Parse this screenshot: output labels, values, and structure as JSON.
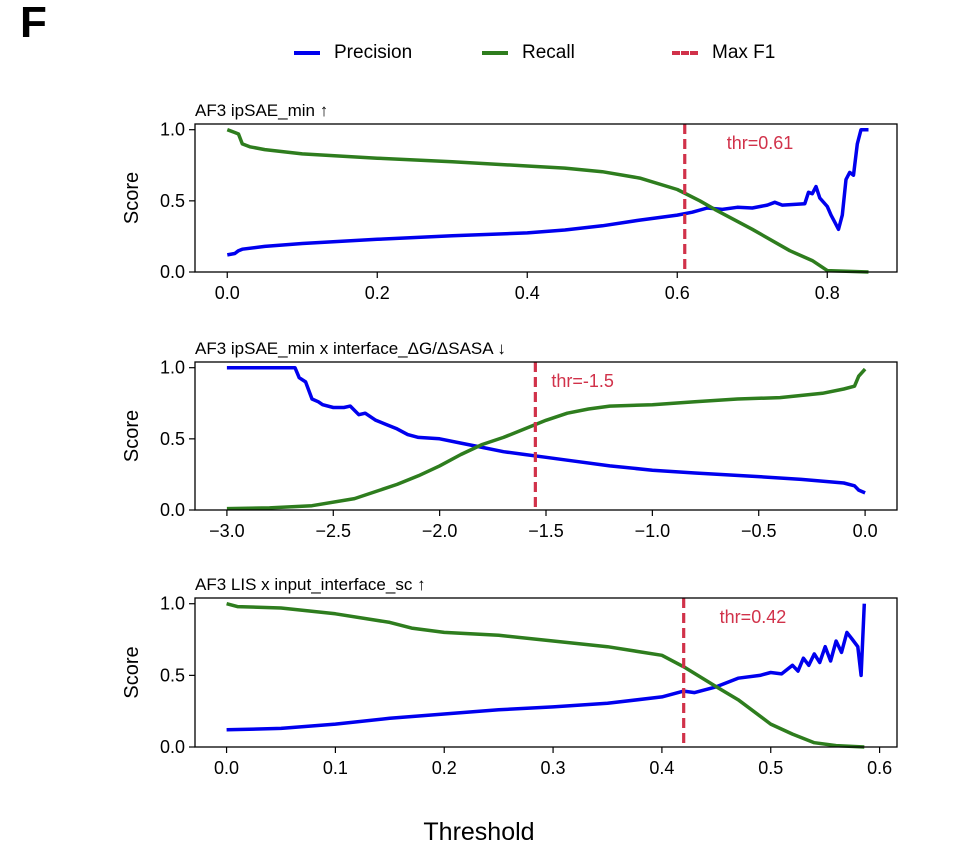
{
  "panel_letter": "F",
  "legend": [
    {
      "label": "Precision",
      "color": "#0000ee",
      "style": "solid"
    },
    {
      "label": "Recall",
      "color": "#2e7d1e",
      "style": "solid"
    },
    {
      "label": "Max F1",
      "color": "#d1324a",
      "style": "dashed"
    }
  ],
  "shared_xlabel": "Threshold",
  "chart_data": [
    {
      "type": "line",
      "title": "AF3 ipSAE_min ↑",
      "xlabel": "Threshold",
      "ylabel": "Score",
      "xlim": [
        -0.043,
        0.893
      ],
      "ylim": [
        0.0,
        1.04
      ],
      "xticks": [
        0.0,
        0.2,
        0.4,
        0.6,
        0.8
      ],
      "xtick_labels": [
        "0.0",
        "0.2",
        "0.4",
        "0.6",
        "0.8"
      ],
      "yticks": [
        0.0,
        0.5,
        1.0
      ],
      "ytick_labels": [
        "0.0",
        "0.5",
        "1.0"
      ],
      "grid": false,
      "max_f1_threshold": 0.61,
      "annotation": "thr=0.61",
      "series": [
        {
          "name": "Precision",
          "color": "#0000ee",
          "x": [
            0,
            0.01,
            0.015,
            0.02,
            0.05,
            0.1,
            0.2,
            0.3,
            0.4,
            0.45,
            0.5,
            0.55,
            0.6,
            0.62,
            0.64,
            0.66,
            0.68,
            0.7,
            0.72,
            0.73,
            0.74,
            0.77,
            0.775,
            0.78,
            0.785,
            0.79,
            0.8,
            0.805,
            0.81,
            0.815,
            0.82,
            0.825,
            0.83,
            0.835,
            0.84,
            0.845,
            0.855
          ],
          "y": [
            0.12,
            0.13,
            0.15,
            0.16,
            0.18,
            0.2,
            0.23,
            0.255,
            0.275,
            0.295,
            0.325,
            0.365,
            0.4,
            0.42,
            0.45,
            0.44,
            0.455,
            0.45,
            0.47,
            0.49,
            0.47,
            0.48,
            0.56,
            0.55,
            0.6,
            0.52,
            0.46,
            0.4,
            0.35,
            0.3,
            0.4,
            0.65,
            0.7,
            0.68,
            0.9,
            1.0,
            1.0
          ]
        },
        {
          "name": "Recall",
          "color": "#2e7d1e",
          "x": [
            0,
            0.01,
            0.015,
            0.02,
            0.03,
            0.05,
            0.1,
            0.2,
            0.3,
            0.4,
            0.45,
            0.5,
            0.55,
            0.6,
            0.63,
            0.65,
            0.7,
            0.75,
            0.78,
            0.8,
            0.855
          ],
          "y": [
            1.0,
            0.98,
            0.97,
            0.9,
            0.88,
            0.86,
            0.83,
            0.8,
            0.775,
            0.745,
            0.73,
            0.705,
            0.66,
            0.58,
            0.5,
            0.44,
            0.3,
            0.15,
            0.08,
            0.01,
            0.0
          ]
        }
      ]
    },
    {
      "type": "line",
      "title": "AF3 ipSAE_min x interface_ΔG/ΔSASA ↓",
      "xlabel": "Threshold",
      "ylabel": "Score",
      "xlim": [
        -3.15,
        0.15
      ],
      "ylim": [
        0.0,
        1.04
      ],
      "xticks": [
        -3.0,
        -2.5,
        -2.0,
        -1.5,
        -1.0,
        -0.5,
        0.0
      ],
      "xtick_labels": [
        "−3.0",
        "−2.5",
        "−2.0",
        "−1.5",
        "−1.0",
        "−0.5",
        "0.0"
      ],
      "yticks": [
        0.0,
        0.5,
        1.0
      ],
      "ytick_labels": [
        "0.0",
        "0.5",
        "1.0"
      ],
      "grid": false,
      "max_f1_threshold": -1.55,
      "annotation": "thr=-1.5",
      "series": [
        {
          "name": "Precision",
          "color": "#0000ee",
          "x": [
            -3.0,
            -2.8,
            -2.68,
            -2.66,
            -2.63,
            -2.6,
            -2.57,
            -2.55,
            -2.5,
            -2.45,
            -2.42,
            -2.38,
            -2.35,
            -2.3,
            -2.25,
            -2.2,
            -2.15,
            -2.1,
            -2.0,
            -1.9,
            -1.8,
            -1.7,
            -1.6,
            -1.5,
            -1.4,
            -1.2,
            -1.0,
            -0.8,
            -0.5,
            -0.3,
            -0.1,
            -0.05,
            -0.03,
            0.0
          ],
          "y": [
            1.0,
            1.0,
            1.0,
            0.93,
            0.9,
            0.78,
            0.76,
            0.74,
            0.72,
            0.72,
            0.73,
            0.67,
            0.68,
            0.63,
            0.6,
            0.57,
            0.53,
            0.51,
            0.5,
            0.47,
            0.44,
            0.41,
            0.39,
            0.37,
            0.35,
            0.31,
            0.28,
            0.26,
            0.235,
            0.215,
            0.19,
            0.17,
            0.14,
            0.12
          ]
        },
        {
          "name": "Recall",
          "color": "#2e7d1e",
          "x": [
            -3.0,
            -2.8,
            -2.6,
            -2.4,
            -2.2,
            -2.1,
            -2.0,
            -1.9,
            -1.8,
            -1.7,
            -1.6,
            -1.5,
            -1.4,
            -1.3,
            -1.2,
            -1.0,
            -0.8,
            -0.6,
            -0.4,
            -0.2,
            -0.1,
            -0.05,
            -0.03,
            0.0
          ],
          "y": [
            0.01,
            0.015,
            0.03,
            0.08,
            0.18,
            0.24,
            0.31,
            0.39,
            0.46,
            0.51,
            0.57,
            0.63,
            0.68,
            0.71,
            0.73,
            0.74,
            0.76,
            0.78,
            0.79,
            0.82,
            0.85,
            0.87,
            0.94,
            0.99
          ]
        }
      ]
    },
    {
      "type": "line",
      "title": "AF3 LIS x input_interface_sc ↑",
      "xlabel": "Threshold",
      "ylabel": "Score",
      "xlim": [
        -0.029,
        0.616
      ],
      "ylim": [
        0.0,
        1.04
      ],
      "xticks": [
        0.0,
        0.1,
        0.2,
        0.3,
        0.4,
        0.5,
        0.6
      ],
      "xtick_labels": [
        "0.0",
        "0.1",
        "0.2",
        "0.3",
        "0.4",
        "0.5",
        "0.6"
      ],
      "yticks": [
        0.0,
        0.5,
        1.0
      ],
      "ytick_labels": [
        "0.0",
        "0.5",
        "1.0"
      ],
      "grid": false,
      "max_f1_threshold": 0.42,
      "annotation": "thr=0.42",
      "series": [
        {
          "name": "Precision",
          "color": "#0000ee",
          "x": [
            0,
            0.05,
            0.1,
            0.15,
            0.2,
            0.25,
            0.3,
            0.35,
            0.4,
            0.42,
            0.43,
            0.45,
            0.47,
            0.49,
            0.5,
            0.51,
            0.52,
            0.525,
            0.53,
            0.535,
            0.54,
            0.545,
            0.55,
            0.555,
            0.56,
            0.565,
            0.57,
            0.575,
            0.58,
            0.583,
            0.586
          ],
          "y": [
            0.12,
            0.13,
            0.16,
            0.2,
            0.23,
            0.26,
            0.28,
            0.305,
            0.35,
            0.39,
            0.38,
            0.42,
            0.48,
            0.5,
            0.52,
            0.51,
            0.57,
            0.53,
            0.62,
            0.57,
            0.65,
            0.59,
            0.7,
            0.6,
            0.74,
            0.66,
            0.8,
            0.75,
            0.7,
            0.5,
            1.0
          ]
        },
        {
          "name": "Recall",
          "color": "#2e7d1e",
          "x": [
            0,
            0.01,
            0.05,
            0.1,
            0.15,
            0.17,
            0.2,
            0.25,
            0.3,
            0.35,
            0.4,
            0.42,
            0.45,
            0.47,
            0.5,
            0.52,
            0.54,
            0.56,
            0.586
          ],
          "y": [
            1.0,
            0.98,
            0.97,
            0.93,
            0.87,
            0.83,
            0.8,
            0.78,
            0.74,
            0.7,
            0.64,
            0.56,
            0.42,
            0.33,
            0.16,
            0.09,
            0.03,
            0.01,
            0.0
          ]
        }
      ]
    }
  ]
}
